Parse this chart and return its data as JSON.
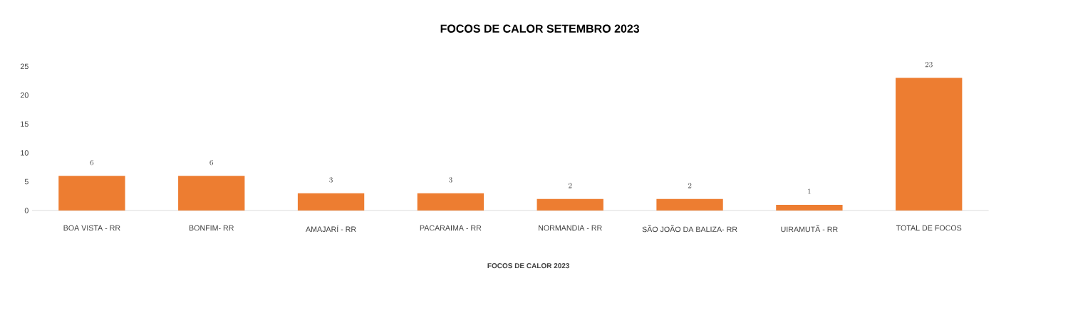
{
  "chart_data": {
    "type": "bar",
    "title": "FOCOS DE CALOR SETEMBRO 2023",
    "xlabel": "FOCOS DE CALOR 2023",
    "categories": [
      "BOA VISTA - RR",
      "BONFIM- RR",
      "AMAJARÍ - RR",
      "PACARAIMA - RR",
      "NORMANDIA - RR",
      "SÃO JOÃO DA BALIZA- RR",
      "UIRAMUTÃ - RR",
      "TOTAL DE FOCOS"
    ],
    "values": [
      6,
      6,
      3,
      3,
      2,
      2,
      1,
      23
    ],
    "color": "#ed7d31",
    "ylim": [
      0,
      25
    ],
    "yticks": [
      0,
      5,
      10,
      15,
      20,
      25
    ],
    "data_labels": true
  }
}
